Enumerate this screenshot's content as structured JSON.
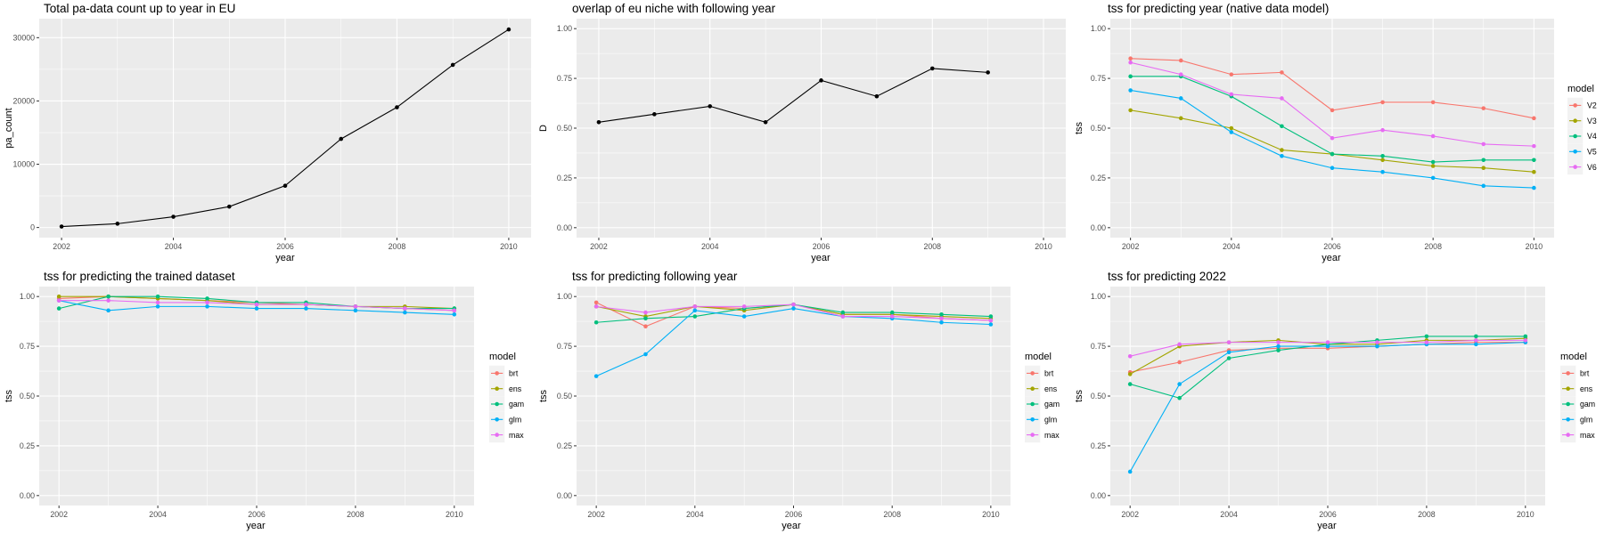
{
  "chart_data": [
    {
      "type": "line",
      "title": "Total pa-data count up to year in EU",
      "xlabel": "year",
      "ylabel": "pa_count",
      "x": [
        2002,
        2003,
        2004,
        2005,
        2006,
        2007,
        2008,
        2009,
        2010
      ],
      "xticks": [
        2002,
        2004,
        2006,
        2008,
        2010
      ],
      "yticks": [
        0,
        10000,
        20000,
        30000
      ],
      "xlim": [
        2001.6,
        2010.4
      ],
      "ylim": [
        -1600,
        33000
      ],
      "grid": true,
      "legend": null,
      "series": [
        {
          "color": "#000000",
          "values": [
            150,
            600,
            1700,
            3300,
            6600,
            14000,
            19000,
            25700,
            31300
          ]
        }
      ]
    },
    {
      "type": "line",
      "title": "overlap of eu niche with following year",
      "xlabel": "year",
      "ylabel": "D",
      "x": [
        2002,
        2003,
        2004,
        2005,
        2006,
        2007,
        2008,
        2009
      ],
      "xticks": [
        2002,
        2004,
        2006,
        2008,
        2010
      ],
      "yticks": [
        0,
        0.25,
        0.5,
        0.75,
        1.0
      ],
      "ytick_labels": [
        "0.00",
        "0.25",
        "0.50",
        "0.75",
        "1.00"
      ],
      "xlim": [
        2001.6,
        2010.4
      ],
      "ylim": [
        -0.05,
        1.05
      ],
      "grid": true,
      "legend": null,
      "series": [
        {
          "color": "#000000",
          "values": [
            0.53,
            0.57,
            0.61,
            0.53,
            0.74,
            0.66,
            0.8,
            0.78
          ]
        }
      ]
    },
    {
      "type": "line",
      "title": "tss for predicting year (native data model)",
      "xlabel": "year",
      "ylabel": "tss",
      "x": [
        2002,
        2003,
        2004,
        2005,
        2006,
        2007,
        2008,
        2009,
        2010
      ],
      "xticks": [
        2002,
        2004,
        2006,
        2008,
        2010
      ],
      "yticks": [
        0,
        0.25,
        0.5,
        0.75,
        1.0
      ],
      "ytick_labels": [
        "0.00",
        "0.25",
        "0.50",
        "0.75",
        "1.00"
      ],
      "xlim": [
        2001.6,
        2010.4
      ],
      "ylim": [
        -0.05,
        1.05
      ],
      "grid": true,
      "legend": {
        "title": "model",
        "position": "right"
      },
      "series": [
        {
          "name": "V2",
          "color": "#F8766D",
          "values": [
            0.85,
            0.84,
            0.77,
            0.78,
            0.59,
            0.63,
            0.63,
            0.6,
            0.55
          ]
        },
        {
          "name": "V3",
          "color": "#A3A500",
          "values": [
            0.59,
            0.55,
            0.5,
            0.39,
            0.37,
            0.34,
            0.31,
            0.3,
            0.28
          ]
        },
        {
          "name": "V4",
          "color": "#00BF7D",
          "values": [
            0.76,
            0.76,
            0.66,
            0.51,
            0.37,
            0.36,
            0.33,
            0.34,
            0.34
          ]
        },
        {
          "name": "V5",
          "color": "#00B0F6",
          "values": [
            0.69,
            0.65,
            0.48,
            0.36,
            0.3,
            0.28,
            0.25,
            0.21,
            0.2
          ]
        },
        {
          "name": "V6",
          "color": "#E76BF3",
          "values": [
            0.83,
            0.77,
            0.67,
            0.65,
            0.45,
            0.49,
            0.46,
            0.42,
            0.41
          ]
        }
      ]
    },
    {
      "type": "line",
      "title": "tss for predicting the trained dataset",
      "xlabel": "year",
      "ylabel": "tss",
      "x": [
        2002,
        2003,
        2004,
        2005,
        2006,
        2007,
        2008,
        2009,
        2010
      ],
      "xticks": [
        2002,
        2004,
        2006,
        2008,
        2010
      ],
      "yticks": [
        0,
        0.25,
        0.5,
        0.75,
        1.0
      ],
      "ytick_labels": [
        "0.00",
        "0.25",
        "0.50",
        "0.75",
        "1.00"
      ],
      "xlim": [
        2001.6,
        2010.4
      ],
      "ylim": [
        -0.05,
        1.05
      ],
      "grid": true,
      "legend": {
        "title": "model",
        "position": "right"
      },
      "series": [
        {
          "name": "brt",
          "color": "#F8766D",
          "values": [
            0.99,
            1.0,
            0.99,
            0.98,
            0.97,
            0.96,
            0.95,
            0.94,
            0.93
          ]
        },
        {
          "name": "ens",
          "color": "#A3A500",
          "values": [
            1.0,
            1.0,
            0.99,
            0.98,
            0.96,
            0.96,
            0.95,
            0.95,
            0.94
          ]
        },
        {
          "name": "gam",
          "color": "#00BF7D",
          "values": [
            0.94,
            1.0,
            1.0,
            0.99,
            0.97,
            0.97,
            0.95,
            0.94,
            0.94
          ]
        },
        {
          "name": "glm",
          "color": "#00B0F6",
          "values": [
            0.98,
            0.93,
            0.95,
            0.95,
            0.94,
            0.94,
            0.93,
            0.92,
            0.91
          ]
        },
        {
          "name": "max",
          "color": "#E76BF3",
          "values": [
            0.98,
            0.98,
            0.97,
            0.97,
            0.96,
            0.96,
            0.95,
            0.94,
            0.93
          ]
        }
      ]
    },
    {
      "type": "line",
      "title": "tss for predicting following year",
      "xlabel": "year",
      "ylabel": "tss",
      "x": [
        2002,
        2003,
        2004,
        2005,
        2006,
        2007,
        2008,
        2009,
        2010
      ],
      "xticks": [
        2002,
        2004,
        2006,
        2008,
        2010
      ],
      "yticks": [
        0,
        0.25,
        0.5,
        0.75,
        1.0
      ],
      "ytick_labels": [
        "0.00",
        "0.25",
        "0.50",
        "0.75",
        "1.00"
      ],
      "xlim": [
        2001.6,
        2010.4
      ],
      "ylim": [
        -0.05,
        1.05
      ],
      "grid": true,
      "legend": {
        "title": "model",
        "position": "right"
      },
      "series": [
        {
          "name": "brt",
          "color": "#F8766D",
          "values": [
            0.97,
            0.85,
            0.95,
            0.94,
            0.96,
            0.91,
            0.91,
            0.89,
            0.88
          ]
        },
        {
          "name": "ens",
          "color": "#A3A500",
          "values": [
            0.95,
            0.9,
            0.95,
            0.93,
            0.96,
            0.91,
            0.91,
            0.9,
            0.89
          ]
        },
        {
          "name": "gam",
          "color": "#00BF7D",
          "values": [
            0.87,
            0.89,
            0.9,
            0.94,
            0.96,
            0.92,
            0.92,
            0.91,
            0.9
          ]
        },
        {
          "name": "glm",
          "color": "#00B0F6",
          "values": [
            0.6,
            0.71,
            0.93,
            0.9,
            0.94,
            0.9,
            0.89,
            0.87,
            0.86
          ]
        },
        {
          "name": "max",
          "color": "#E76BF3",
          "values": [
            0.95,
            0.92,
            0.95,
            0.95,
            0.96,
            0.9,
            0.9,
            0.89,
            0.88
          ]
        }
      ]
    },
    {
      "type": "line",
      "title": "tss for predicting 2022",
      "xlabel": "year",
      "ylabel": "tss",
      "x": [
        2002,
        2003,
        2004,
        2005,
        2006,
        2007,
        2008,
        2009,
        2010
      ],
      "xticks": [
        2002,
        2004,
        2006,
        2008,
        2010
      ],
      "yticks": [
        0,
        0.25,
        0.5,
        0.75,
        1.0
      ],
      "ytick_labels": [
        "0.00",
        "0.25",
        "0.50",
        "0.75",
        "1.00"
      ],
      "xlim": [
        2001.6,
        2010.4
      ],
      "ylim": [
        -0.05,
        1.05
      ],
      "grid": true,
      "legend": {
        "title": "model",
        "position": "right"
      },
      "series": [
        {
          "name": "brt",
          "color": "#F8766D",
          "values": [
            0.62,
            0.67,
            0.73,
            0.74,
            0.74,
            0.75,
            0.76,
            0.77,
            0.77
          ]
        },
        {
          "name": "ens",
          "color": "#A3A500",
          "values": [
            0.61,
            0.75,
            0.77,
            0.78,
            0.76,
            0.76,
            0.78,
            0.78,
            0.79
          ]
        },
        {
          "name": "gam",
          "color": "#00BF7D",
          "values": [
            0.56,
            0.49,
            0.69,
            0.73,
            0.76,
            0.78,
            0.8,
            0.8,
            0.8
          ]
        },
        {
          "name": "glm",
          "color": "#00B0F6",
          "values": [
            0.12,
            0.56,
            0.72,
            0.75,
            0.75,
            0.75,
            0.76,
            0.76,
            0.77
          ]
        },
        {
          "name": "max",
          "color": "#E76BF3",
          "values": [
            0.7,
            0.76,
            0.77,
            0.77,
            0.77,
            0.77,
            0.77,
            0.78,
            0.78
          ]
        }
      ]
    }
  ]
}
